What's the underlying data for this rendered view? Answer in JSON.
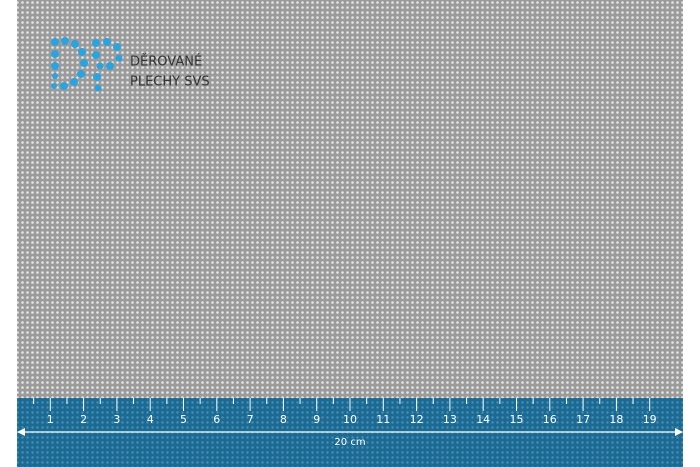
{
  "logo": {
    "line1": "DĚROVANÉ",
    "line2": "PLECHY SVS"
  },
  "ruler": {
    "marks": [
      1,
      2,
      3,
      4,
      5,
      6,
      7,
      8,
      9,
      10,
      11,
      12,
      13,
      14,
      15,
      16,
      17,
      18,
      19
    ],
    "length": 20,
    "length_label": "20 cm"
  }
}
